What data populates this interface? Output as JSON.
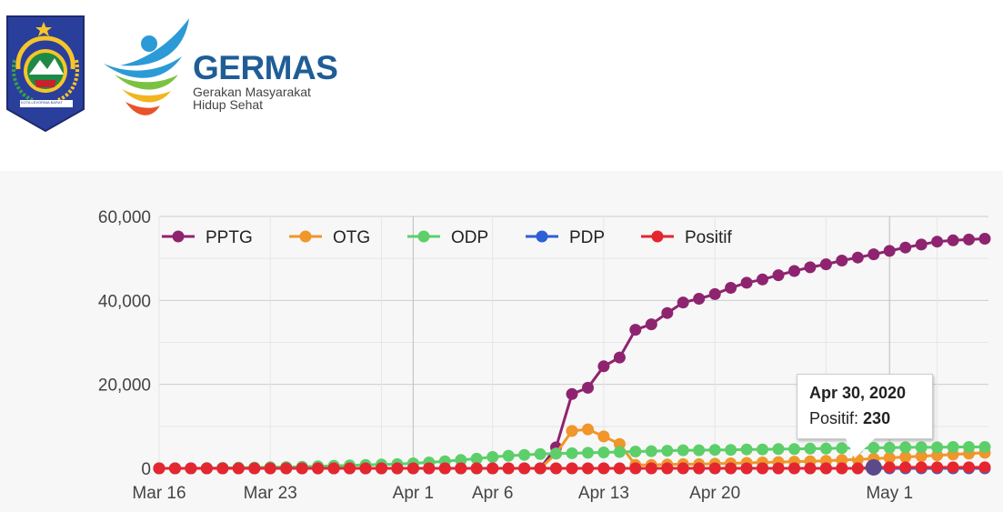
{
  "header": {
    "emblem_caption": "KOTA LEVORNIA BARAT",
    "germas_title": "GERMAS",
    "germas_sub_line1": "Gerakan Masyarakat",
    "germas_sub_line2": "Hidup Sehat"
  },
  "tooltip": {
    "date": "Apr 30, 2020",
    "label": "Positif",
    "value": "230"
  },
  "chart_data": {
    "type": "line",
    "x_start": "2020-03-16",
    "x_end": "2020-05-07",
    "x_ticks": [
      {
        "date": "2020-03-16",
        "label": "Mar 16"
      },
      {
        "date": "2020-03-23",
        "label": "Mar 23"
      },
      {
        "date": "2020-04-01",
        "label": "Apr 1"
      },
      {
        "date": "2020-04-06",
        "label": "Apr 6"
      },
      {
        "date": "2020-04-13",
        "label": "Apr 13"
      },
      {
        "date": "2020-04-20",
        "label": "Apr 20"
      },
      {
        "date": "2020-05-01",
        "label": "May 1"
      }
    ],
    "ylim": [
      0,
      60000
    ],
    "y_ticks": [
      {
        "value": 0,
        "label": "0"
      },
      {
        "value": 20000,
        "label": "20,000"
      },
      {
        "value": 40000,
        "label": "40,000"
      },
      {
        "value": 60000,
        "label": "60,000"
      }
    ],
    "grid": true,
    "legend_position": "top",
    "series": [
      {
        "name": "PPTG",
        "color": "#8e2470",
        "points": [
          [
            "2020-03-16",
            0
          ],
          [
            "2020-03-17",
            0
          ],
          [
            "2020-03-18",
            0
          ],
          [
            "2020-03-19",
            0
          ],
          [
            "2020-03-20",
            0
          ],
          [
            "2020-03-21",
            0
          ],
          [
            "2020-03-22",
            0
          ],
          [
            "2020-03-23",
            0
          ],
          [
            "2020-03-24",
            0
          ],
          [
            "2020-03-25",
            0
          ],
          [
            "2020-03-26",
            0
          ],
          [
            "2020-03-27",
            0
          ],
          [
            "2020-03-28",
            0
          ],
          [
            "2020-03-29",
            0
          ],
          [
            "2020-03-30",
            0
          ],
          [
            "2020-03-31",
            0
          ],
          [
            "2020-04-01",
            0
          ],
          [
            "2020-04-02",
            0
          ],
          [
            "2020-04-03",
            0
          ],
          [
            "2020-04-04",
            0
          ],
          [
            "2020-04-05",
            0
          ],
          [
            "2020-04-06",
            0
          ],
          [
            "2020-04-07",
            0
          ],
          [
            "2020-04-08",
            0
          ],
          [
            "2020-04-09",
            0
          ],
          [
            "2020-04-10",
            5000
          ],
          [
            "2020-04-11",
            17700
          ],
          [
            "2020-04-12",
            19200
          ],
          [
            "2020-04-13",
            24300
          ],
          [
            "2020-04-14",
            26400
          ],
          [
            "2020-04-15",
            33000
          ],
          [
            "2020-04-16",
            34300
          ],
          [
            "2020-04-17",
            37000
          ],
          [
            "2020-04-18",
            39500
          ],
          [
            "2020-04-19",
            40400
          ],
          [
            "2020-04-20",
            41500
          ],
          [
            "2020-04-21",
            43000
          ],
          [
            "2020-04-22",
            44200
          ],
          [
            "2020-04-23",
            45000
          ],
          [
            "2020-04-24",
            46000
          ],
          [
            "2020-04-25",
            47000
          ],
          [
            "2020-04-26",
            47900
          ],
          [
            "2020-04-27",
            48600
          ],
          [
            "2020-04-28",
            49500
          ],
          [
            "2020-04-29",
            50200
          ],
          [
            "2020-04-30",
            51000
          ],
          [
            "2020-05-01",
            51800
          ],
          [
            "2020-05-02",
            52600
          ],
          [
            "2020-05-03",
            53300
          ],
          [
            "2020-05-04",
            54000
          ],
          [
            "2020-05-05",
            54300
          ],
          [
            "2020-05-06",
            54500
          ],
          [
            "2020-05-07",
            54700
          ]
        ]
      },
      {
        "name": "OTG",
        "color": "#f0962a",
        "points": [
          [
            "2020-03-16",
            0
          ],
          [
            "2020-03-17",
            0
          ],
          [
            "2020-03-18",
            0
          ],
          [
            "2020-03-19",
            0
          ],
          [
            "2020-03-20",
            0
          ],
          [
            "2020-03-21",
            0
          ],
          [
            "2020-03-22",
            0
          ],
          [
            "2020-03-23",
            0
          ],
          [
            "2020-03-24",
            0
          ],
          [
            "2020-03-25",
            0
          ],
          [
            "2020-03-26",
            0
          ],
          [
            "2020-03-27",
            0
          ],
          [
            "2020-03-28",
            0
          ],
          [
            "2020-03-29",
            0
          ],
          [
            "2020-03-30",
            0
          ],
          [
            "2020-03-31",
            0
          ],
          [
            "2020-04-01",
            0
          ],
          [
            "2020-04-02",
            0
          ],
          [
            "2020-04-03",
            0
          ],
          [
            "2020-04-04",
            0
          ],
          [
            "2020-04-05",
            0
          ],
          [
            "2020-04-06",
            0
          ],
          [
            "2020-04-07",
            0
          ],
          [
            "2020-04-08",
            0
          ],
          [
            "2020-04-09",
            0
          ],
          [
            "2020-04-10",
            3500
          ],
          [
            "2020-04-11",
            8900
          ],
          [
            "2020-04-12",
            9300
          ],
          [
            "2020-04-13",
            7600
          ],
          [
            "2020-04-14",
            5800
          ],
          [
            "2020-04-15",
            800
          ],
          [
            "2020-04-16",
            800
          ],
          [
            "2020-04-17",
            900
          ],
          [
            "2020-04-18",
            1000
          ],
          [
            "2020-04-19",
            1000
          ],
          [
            "2020-04-20",
            1100
          ],
          [
            "2020-04-21",
            1200
          ],
          [
            "2020-04-22",
            1300
          ],
          [
            "2020-04-23",
            1400
          ],
          [
            "2020-04-24",
            1500
          ],
          [
            "2020-04-25",
            1600
          ],
          [
            "2020-04-26",
            1700
          ],
          [
            "2020-04-27",
            1800
          ],
          [
            "2020-04-28",
            2000
          ],
          [
            "2020-04-29",
            2100
          ],
          [
            "2020-04-30",
            2300
          ],
          [
            "2020-05-01",
            2500
          ],
          [
            "2020-05-02",
            2700
          ],
          [
            "2020-05-03",
            2900
          ],
          [
            "2020-05-04",
            3100
          ],
          [
            "2020-05-05",
            3300
          ],
          [
            "2020-05-06",
            3500
          ],
          [
            "2020-05-07",
            3700
          ]
        ]
      },
      {
        "name": "ODP",
        "color": "#5dcf6a",
        "points": [
          [
            "2020-03-16",
            0
          ],
          [
            "2020-03-17",
            0
          ],
          [
            "2020-03-18",
            0
          ],
          [
            "2020-03-19",
            50
          ],
          [
            "2020-03-20",
            100
          ],
          [
            "2020-03-21",
            150
          ],
          [
            "2020-03-22",
            200
          ],
          [
            "2020-03-23",
            250
          ],
          [
            "2020-03-24",
            300
          ],
          [
            "2020-03-25",
            400
          ],
          [
            "2020-03-26",
            500
          ],
          [
            "2020-03-27",
            600
          ],
          [
            "2020-03-28",
            700
          ],
          [
            "2020-03-29",
            800
          ],
          [
            "2020-03-30",
            900
          ],
          [
            "2020-03-31",
            1000
          ],
          [
            "2020-04-01",
            1200
          ],
          [
            "2020-04-02",
            1400
          ],
          [
            "2020-04-03",
            1700
          ],
          [
            "2020-04-04",
            2000
          ],
          [
            "2020-04-05",
            2300
          ],
          [
            "2020-04-06",
            2700
          ],
          [
            "2020-04-07",
            3000
          ],
          [
            "2020-04-08",
            3200
          ],
          [
            "2020-04-09",
            3400
          ],
          [
            "2020-04-10",
            3500
          ],
          [
            "2020-04-11",
            3600
          ],
          [
            "2020-04-12",
            3700
          ],
          [
            "2020-04-13",
            3800
          ],
          [
            "2020-04-14",
            3900
          ],
          [
            "2020-04-15",
            4000
          ],
          [
            "2020-04-16",
            4100
          ],
          [
            "2020-04-17",
            4200
          ],
          [
            "2020-04-18",
            4300
          ],
          [
            "2020-04-19",
            4300
          ],
          [
            "2020-04-20",
            4400
          ],
          [
            "2020-04-21",
            4400
          ],
          [
            "2020-04-22",
            4500
          ],
          [
            "2020-04-23",
            4500
          ],
          [
            "2020-04-24",
            4600
          ],
          [
            "2020-04-25",
            4600
          ],
          [
            "2020-04-26",
            4700
          ],
          [
            "2020-04-27",
            4700
          ],
          [
            "2020-04-28",
            4800
          ],
          [
            "2020-04-29",
            4800
          ],
          [
            "2020-04-30",
            4900
          ],
          [
            "2020-05-01",
            4900
          ],
          [
            "2020-05-02",
            5000
          ],
          [
            "2020-05-03",
            5000
          ],
          [
            "2020-05-04",
            5000
          ],
          [
            "2020-05-05",
            5100
          ],
          [
            "2020-05-06",
            5100
          ],
          [
            "2020-05-07",
            5100
          ]
        ]
      },
      {
        "name": "PDP",
        "color": "#2d5fd6",
        "points": [
          [
            "2020-03-16",
            0
          ],
          [
            "2020-03-17",
            0
          ],
          [
            "2020-03-18",
            0
          ],
          [
            "2020-03-19",
            0
          ],
          [
            "2020-03-20",
            0
          ],
          [
            "2020-03-21",
            0
          ],
          [
            "2020-03-22",
            0
          ],
          [
            "2020-03-23",
            0
          ],
          [
            "2020-03-24",
            0
          ],
          [
            "2020-03-25",
            0
          ],
          [
            "2020-03-26",
            0
          ],
          [
            "2020-03-27",
            0
          ],
          [
            "2020-03-28",
            0
          ],
          [
            "2020-03-29",
            0
          ],
          [
            "2020-03-30",
            0
          ],
          [
            "2020-03-31",
            0
          ],
          [
            "2020-04-01",
            0
          ],
          [
            "2020-04-02",
            0
          ],
          [
            "2020-04-03",
            0
          ],
          [
            "2020-04-04",
            0
          ],
          [
            "2020-04-05",
            0
          ],
          [
            "2020-04-06",
            0
          ],
          [
            "2020-04-07",
            0
          ],
          [
            "2020-04-08",
            0
          ],
          [
            "2020-04-09",
            0
          ],
          [
            "2020-04-10",
            0
          ],
          [
            "2020-04-11",
            0
          ],
          [
            "2020-04-12",
            0
          ],
          [
            "2020-04-13",
            0
          ],
          [
            "2020-04-14",
            0
          ],
          [
            "2020-04-15",
            0
          ],
          [
            "2020-04-16",
            0
          ],
          [
            "2020-04-17",
            0
          ],
          [
            "2020-04-18",
            0
          ],
          [
            "2020-04-19",
            0
          ],
          [
            "2020-04-20",
            0
          ],
          [
            "2020-04-21",
            0
          ],
          [
            "2020-04-22",
            0
          ],
          [
            "2020-04-23",
            0
          ],
          [
            "2020-04-24",
            0
          ],
          [
            "2020-04-25",
            0
          ],
          [
            "2020-04-26",
            0
          ],
          [
            "2020-04-27",
            0
          ],
          [
            "2020-04-28",
            0
          ],
          [
            "2020-04-29",
            0
          ],
          [
            "2020-04-30",
            0
          ],
          [
            "2020-05-01",
            0
          ],
          [
            "2020-05-02",
            0
          ],
          [
            "2020-05-03",
            0
          ],
          [
            "2020-05-04",
            0
          ],
          [
            "2020-05-05",
            0
          ],
          [
            "2020-05-06",
            0
          ],
          [
            "2020-05-07",
            0
          ]
        ]
      },
      {
        "name": "Positif",
        "color": "#e5262f",
        "points": [
          [
            "2020-03-16",
            0
          ],
          [
            "2020-03-17",
            0
          ],
          [
            "2020-03-18",
            0
          ],
          [
            "2020-03-19",
            0
          ],
          [
            "2020-03-20",
            0
          ],
          [
            "2020-03-21",
            0
          ],
          [
            "2020-03-22",
            0
          ],
          [
            "2020-03-23",
            0
          ],
          [
            "2020-03-24",
            0
          ],
          [
            "2020-03-25",
            0
          ],
          [
            "2020-03-26",
            0
          ],
          [
            "2020-03-27",
            0
          ],
          [
            "2020-03-28",
            0
          ],
          [
            "2020-03-29",
            0
          ],
          [
            "2020-03-30",
            0
          ],
          [
            "2020-03-31",
            0
          ],
          [
            "2020-04-01",
            0
          ],
          [
            "2020-04-02",
            0
          ],
          [
            "2020-04-03",
            0
          ],
          [
            "2020-04-04",
            0
          ],
          [
            "2020-04-05",
            0
          ],
          [
            "2020-04-06",
            0
          ],
          [
            "2020-04-07",
            0
          ],
          [
            "2020-04-08",
            0
          ],
          [
            "2020-04-09",
            0
          ],
          [
            "2020-04-10",
            0
          ],
          [
            "2020-04-11",
            0
          ],
          [
            "2020-04-12",
            0
          ],
          [
            "2020-04-13",
            0
          ],
          [
            "2020-04-14",
            0
          ],
          [
            "2020-04-15",
            0
          ],
          [
            "2020-04-16",
            0
          ],
          [
            "2020-04-17",
            0
          ],
          [
            "2020-04-18",
            0
          ],
          [
            "2020-04-19",
            0
          ],
          [
            "2020-04-20",
            0
          ],
          [
            "2020-04-21",
            0
          ],
          [
            "2020-04-22",
            0
          ],
          [
            "2020-04-23",
            0
          ],
          [
            "2020-04-24",
            0
          ],
          [
            "2020-04-25",
            0
          ],
          [
            "2020-04-26",
            0
          ],
          [
            "2020-04-27",
            0
          ],
          [
            "2020-04-28",
            0
          ],
          [
            "2020-04-29",
            0
          ],
          [
            "2020-04-30",
            230
          ],
          [
            "2020-05-01",
            230
          ],
          [
            "2020-05-02",
            230
          ],
          [
            "2020-05-03",
            230
          ],
          [
            "2020-05-04",
            230
          ],
          [
            "2020-05-05",
            230
          ],
          [
            "2020-05-06",
            230
          ],
          [
            "2020-05-07",
            230
          ]
        ]
      }
    ]
  }
}
